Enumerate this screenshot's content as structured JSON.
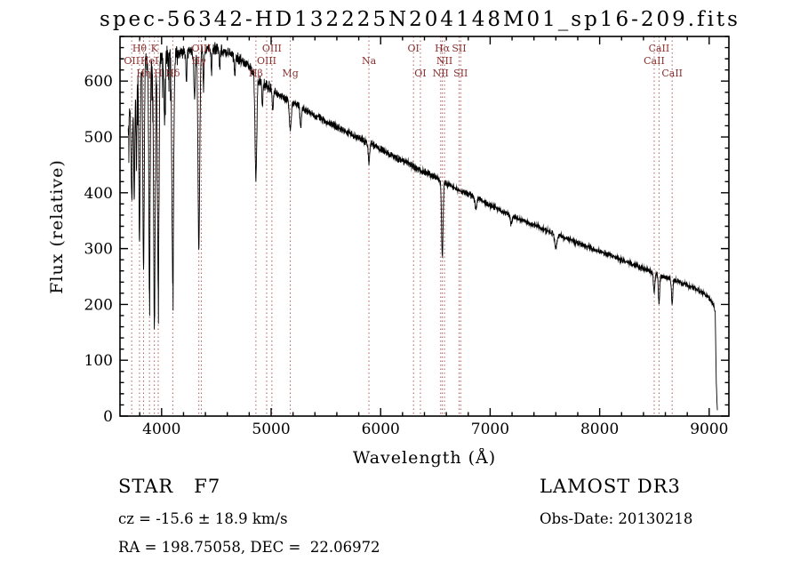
{
  "title": "spec-56342-HD132225N204148M01_sp16-209.fits",
  "footer": {
    "class_label": "STAR   F7",
    "survey": "LAMOST DR3",
    "cz": "cz = -15.6 ± 18.9 km/s",
    "obs_date": "Obs-Date: 20130218",
    "radec": "RA = 198.75058, DEC =  22.06972"
  },
  "chart_data": {
    "type": "line",
    "title": "spec-56342-HD132225N204148M01_sp16-209.fits",
    "xlabel": "Wavelength (Å)",
    "ylabel": "Flux (relative)",
    "xlim": [
      3620,
      9180
    ],
    "ylim": [
      0,
      680
    ],
    "xticks": [
      4000,
      5000,
      6000,
      7000,
      8000,
      9000
    ],
    "yticks": [
      0,
      100,
      200,
      300,
      400,
      500,
      600
    ],
    "x_minor_step": 200,
    "y_minor_step": 20,
    "grid": false,
    "line_color": "#000000",
    "marker_color": "#b05a5a",
    "label_color": "#8b2f2f",
    "continuum_points": [
      [
        3690,
        500
      ],
      [
        3720,
        560
      ],
      [
        3760,
        600
      ],
      [
        3800,
        622
      ],
      [
        3850,
        634
      ],
      [
        3900,
        640
      ],
      [
        3950,
        642
      ],
      [
        4000,
        646
      ],
      [
        4100,
        650
      ],
      [
        4200,
        652
      ],
      [
        4300,
        651
      ],
      [
        4400,
        655
      ],
      [
        4500,
        658
      ],
      [
        4600,
        651
      ],
      [
        4700,
        641
      ],
      [
        4800,
        626
      ],
      [
        4900,
        601
      ],
      [
        5000,
        586
      ],
      [
        5100,
        572
      ],
      [
        5200,
        561
      ],
      [
        5300,
        550
      ],
      [
        5400,
        539
      ],
      [
        5500,
        528
      ],
      [
        5600,
        518
      ],
      [
        5700,
        508
      ],
      [
        5800,
        498
      ],
      [
        5900,
        488
      ],
      [
        6000,
        478
      ],
      [
        6100,
        467
      ],
      [
        6200,
        457
      ],
      [
        6300,
        447
      ],
      [
        6400,
        437
      ],
      [
        6500,
        428
      ],
      [
        6600,
        416
      ],
      [
        6700,
        406
      ],
      [
        6800,
        398
      ],
      [
        6900,
        388
      ],
      [
        7000,
        378
      ],
      [
        7100,
        368
      ],
      [
        7200,
        359
      ],
      [
        7300,
        350
      ],
      [
        7400,
        342
      ],
      [
        7500,
        334
      ],
      [
        7600,
        326
      ],
      [
        7700,
        318
      ],
      [
        7800,
        310
      ],
      [
        7900,
        302
      ],
      [
        8000,
        295
      ],
      [
        8100,
        288
      ],
      [
        8200,
        280
      ],
      [
        8300,
        272
      ],
      [
        8400,
        264
      ],
      [
        8500,
        256
      ],
      [
        8600,
        249
      ],
      [
        8700,
        242
      ],
      [
        8800,
        234
      ],
      [
        8900,
        226
      ],
      [
        9000,
        212
      ],
      [
        9040,
        198
      ],
      [
        9055,
        188
      ],
      [
        9065,
        60
      ],
      [
        9075,
        8
      ]
    ],
    "absorption_features": [
      [
        3727,
        170,
        6
      ],
      [
        3750,
        200,
        5
      ],
      [
        3770,
        150,
        4
      ],
      [
        3798,
        300,
        6
      ],
      [
        3835,
        380,
        6
      ],
      [
        3889,
        420,
        6
      ],
      [
        3934,
        480,
        7
      ],
      [
        3969,
        420,
        7
      ],
      [
        4026,
        110,
        5
      ],
      [
        4102,
        410,
        8
      ],
      [
        4227,
        60,
        4
      ],
      [
        4300,
        80,
        6
      ],
      [
        4340,
        350,
        8
      ],
      [
        4383,
        70,
        4
      ],
      [
        4455,
        45,
        4
      ],
      [
        4531,
        40,
        4
      ],
      [
        4668,
        35,
        4
      ],
      [
        4861,
        190,
        8
      ],
      [
        4920,
        40,
        5
      ],
      [
        5015,
        35,
        5
      ],
      [
        5175,
        50,
        9
      ],
      [
        5270,
        35,
        6
      ],
      [
        5893,
        35,
        7
      ],
      [
        6563,
        135,
        7
      ],
      [
        6870,
        20,
        8
      ],
      [
        7190,
        15,
        8
      ],
      [
        7600,
        25,
        10
      ],
      [
        8498,
        35,
        6
      ],
      [
        8542,
        52,
        6
      ],
      [
        8662,
        45,
        6
      ]
    ],
    "noise_profile": [
      [
        4150,
        24
      ],
      [
        5000,
        13
      ],
      [
        6500,
        8
      ],
      [
        12000,
        6
      ]
    ],
    "spectral_lines": [
      {
        "label": "Hθ",
        "wl": 3798,
        "row": 0
      },
      {
        "label": "K",
        "wl": 3934,
        "row": 0
      },
      {
        "label": "OIII",
        "wl": 4363,
        "row": 0
      },
      {
        "label": "OIII",
        "wl": 5007,
        "row": 0
      },
      {
        "label": "OI",
        "wl": 6300,
        "row": 0
      },
      {
        "label": "Hα",
        "wl": 6563,
        "row": 0
      },
      {
        "label": "SII",
        "wl": 6716,
        "row": 0
      },
      {
        "label": "CaII",
        "wl": 8542,
        "row": 0
      },
      {
        "label": "OII",
        "wl": 3727,
        "row": 1
      },
      {
        "label": "HeI",
        "wl": 3889,
        "row": 1
      },
      {
        "label": "Hγ",
        "wl": 4340,
        "row": 1
      },
      {
        "label": "OIII",
        "wl": 4959,
        "row": 1
      },
      {
        "label": "Na",
        "wl": 5893,
        "row": 1
      },
      {
        "label": "NII",
        "wl": 6583,
        "row": 1
      },
      {
        "label": "CaII",
        "wl": 8498,
        "row": 1
      },
      {
        "label": "Hη",
        "wl": 3835,
        "row": 2
      },
      {
        "label": "H",
        "wl": 3969,
        "row": 2
      },
      {
        "label": "Hδ",
        "wl": 4102,
        "row": 2
      },
      {
        "label": "Hβ",
        "wl": 4861,
        "row": 2
      },
      {
        "label": "Mg",
        "wl": 5175,
        "row": 2
      },
      {
        "label": "OI",
        "wl": 6363,
        "row": 2
      },
      {
        "label": "NII",
        "wl": 6548,
        "row": 2
      },
      {
        "label": "SII",
        "wl": 6731,
        "row": 2
      },
      {
        "label": "CaII",
        "wl": 8662,
        "row": 2
      }
    ]
  }
}
